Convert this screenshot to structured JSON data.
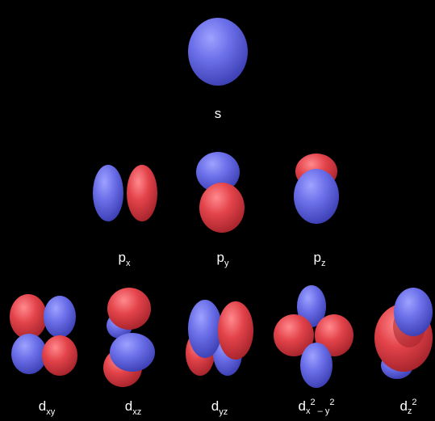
{
  "colors": {
    "positive_lobe": "#6a6ee8",
    "negative_lobe": "#e3434a",
    "background": "#000000"
  },
  "labels": {
    "s": "s",
    "px": {
      "main": "p",
      "sub": "x"
    },
    "py": {
      "main": "p",
      "sub": "y"
    },
    "pz": {
      "main": "p",
      "sub": "z"
    },
    "dxy": {
      "main": "d",
      "sub": "xy"
    },
    "dxz": {
      "main": "d",
      "sub": "xz"
    },
    "dyz": {
      "main": "d",
      "sub": "yz"
    },
    "dx2y2": {
      "main": "d",
      "sub_a": "x",
      "sup_a": "2",
      "sub_b": " – y",
      "sup_b": "2"
    },
    "dz2": {
      "main": "d",
      "sub": "z",
      "sup": "2"
    }
  }
}
